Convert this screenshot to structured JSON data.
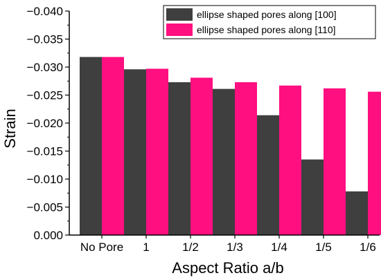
{
  "chart_data": {
    "type": "bar",
    "title": "",
    "xlabel": "Aspect Ratio a/b",
    "ylabel": "Strain",
    "categories": [
      "No Pore",
      "1",
      "1/2",
      "1/3",
      "1/4",
      "1/5",
      "1/6"
    ],
    "series": [
      {
        "name": "ellipse shaped pores along [100]",
        "color": "#3f3f3f",
        "values": [
          -0.0318,
          -0.0296,
          -0.0273,
          -0.0261,
          -0.0214,
          -0.0135,
          -0.0078
        ]
      },
      {
        "name": "ellipse shaped pores along [110]",
        "color": "#ff0f80",
        "values": [
          -0.0318,
          -0.0297,
          -0.0281,
          -0.0273,
          -0.0267,
          -0.0262,
          -0.0256
        ]
      }
    ],
    "y_axis": {
      "range": [
        0.0,
        -0.04
      ],
      "orientation": "values grow more negative upward",
      "ticks": [
        "0.000",
        "−0.005",
        "−0.010",
        "−0.015",
        "−0.020",
        "−0.025",
        "−0.030",
        "−0.035",
        "−0.040"
      ]
    },
    "legend_position": "top-right",
    "grid": false
  }
}
